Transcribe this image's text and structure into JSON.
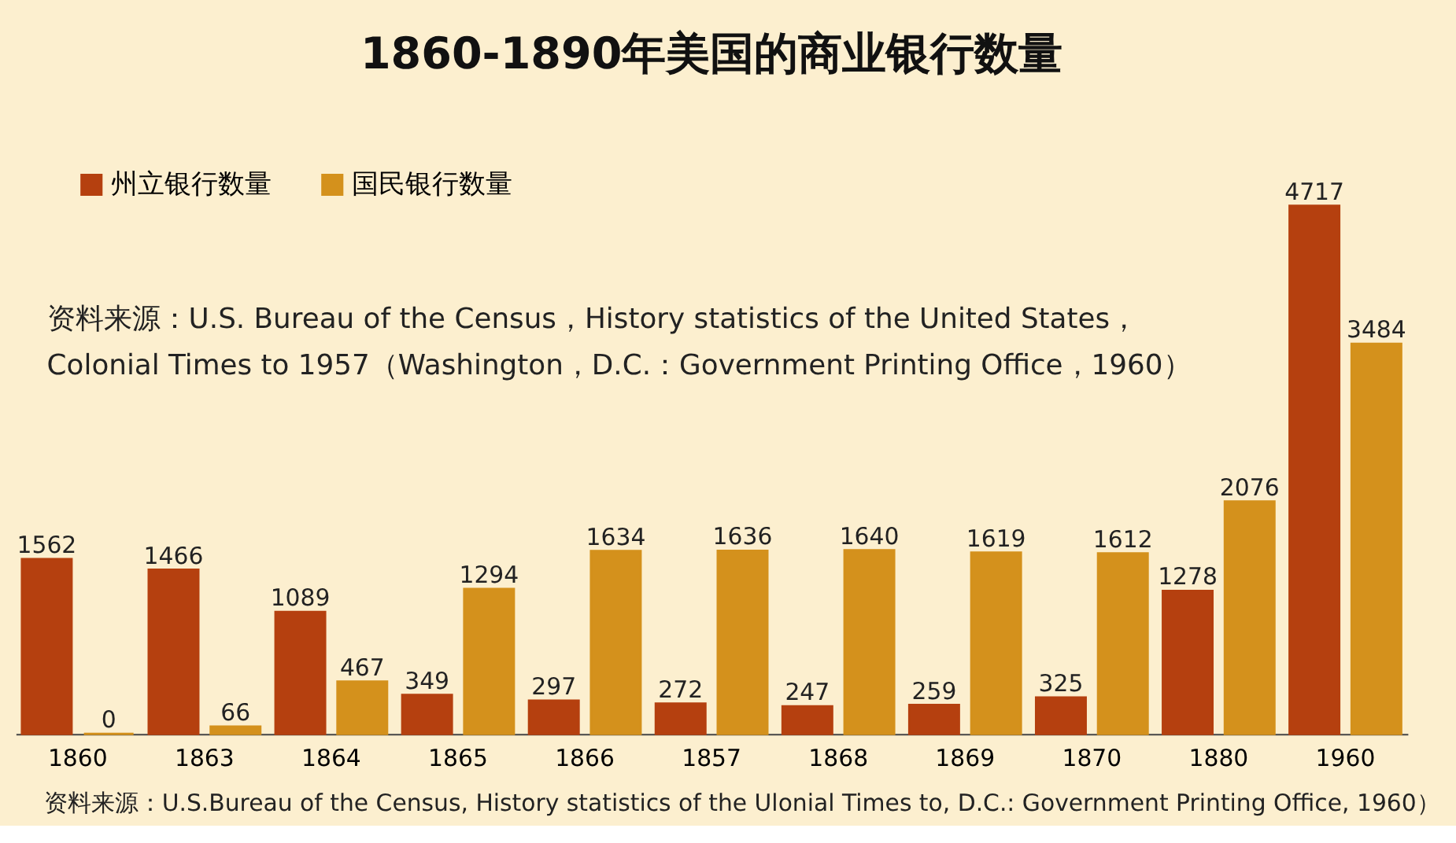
{
  "chart_data": {
    "type": "bar",
    "title": "1860-1890年美国的商业银行数量",
    "categories": [
      "1860",
      "1863",
      "1864",
      "1865",
      "1866",
      "1857",
      "1868",
      "1869",
      "1870",
      "1880",
      "1960"
    ],
    "series": [
      {
        "name": "州立银行数量",
        "color": "#b5400f",
        "values": [
          1562,
          1466,
          1089,
          349,
          297,
          272,
          247,
          259,
          325,
          1278,
          4717
        ]
      },
      {
        "name": "国民银行数量",
        "color": "#d4911c",
        "values": [
          0,
          66,
          467,
          1294,
          1634,
          1636,
          1640,
          1619,
          1612,
          2076,
          3484
        ]
      }
    ],
    "data_labels": true,
    "legend": "top left",
    "grid": false,
    "annotations": [
      "资料来源：U.S. Bureau of the Census，History statistics of the United States，",
      "Colonial Times to 1957（Washington，D.C.：Government Printing Office，1960）",
      "资料来源：U.S.Bureau of the Census, History statistics of the Ulonial Times to, D.C.: Government Printing Office, 1960）"
    ]
  }
}
